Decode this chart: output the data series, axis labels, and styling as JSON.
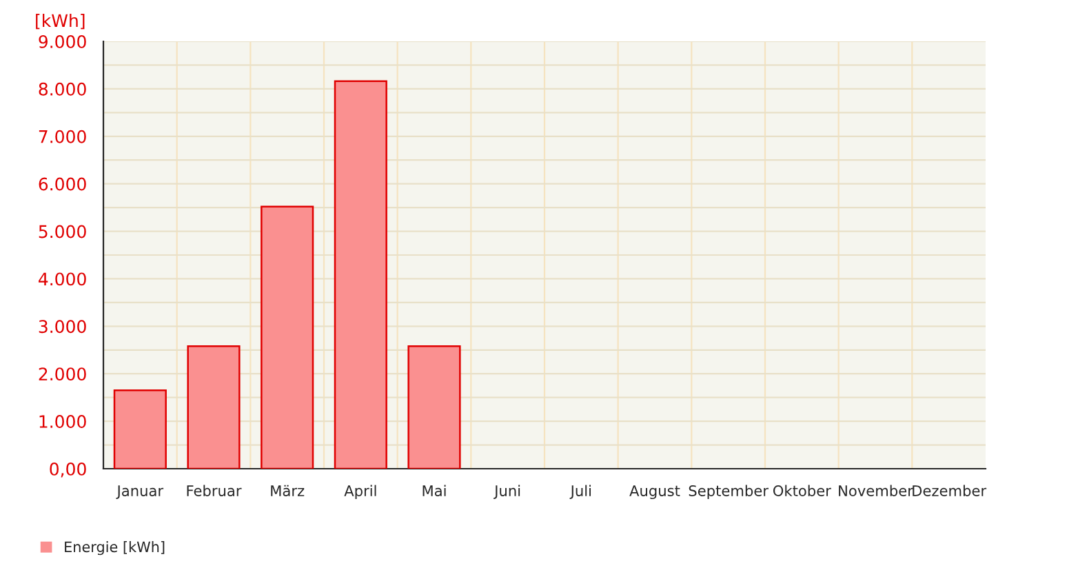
{
  "chart_data": {
    "type": "bar",
    "ylabel": "[kWh]",
    "categories": [
      "Januar",
      "Februar",
      "März",
      "April",
      "Mai",
      "Juni",
      "Juli",
      "August",
      "September",
      "Oktober",
      "November",
      "Dezember"
    ],
    "series": [
      {
        "name": "Energie [kWh]",
        "color": "#fa9090",
        "values": [
          1650,
          2580,
          5520,
          8160,
          2580,
          null,
          null,
          null,
          null,
          null,
          null,
          null
        ]
      }
    ],
    "ylim": [
      0,
      9000
    ],
    "yticks": [
      {
        "value": 0,
        "label": "0,00"
      },
      {
        "value": 1000,
        "label": "1.000"
      },
      {
        "value": 2000,
        "label": "2.000"
      },
      {
        "value": 3000,
        "label": "3.000"
      },
      {
        "value": 4000,
        "label": "4.000"
      },
      {
        "value": 5000,
        "label": "5.000"
      },
      {
        "value": 6000,
        "label": "6.000"
      },
      {
        "value": 7000,
        "label": "7.000"
      },
      {
        "value": 8000,
        "label": "8.000"
      },
      {
        "value": 9000,
        "label": "9.000"
      }
    ],
    "grid": true,
    "legend": "bottom left"
  }
}
